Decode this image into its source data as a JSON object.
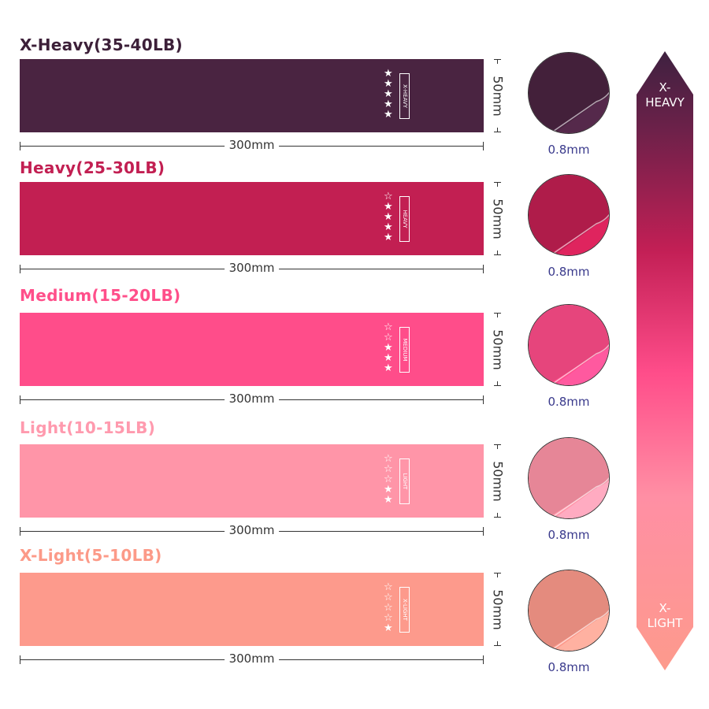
{
  "bands": [
    {
      "title": "X-Heavy(35-40LB)",
      "tag": "X-HEAVY",
      "stars_filled": 5,
      "stars_total": 5,
      "length": "300mm",
      "width": "50mm",
      "thickness": "0.8mm",
      "color": "#4a2441",
      "title_color": "#3d2039"
    },
    {
      "title": "Heavy(25-30LB)",
      "tag": "HEAVY",
      "stars_filled": 4,
      "stars_total": 5,
      "length": "300mm",
      "width": "50mm",
      "thickness": "0.8mm",
      "color": "#c21f52",
      "title_color": "#c21f52"
    },
    {
      "title": "Medium(15-20LB)",
      "tag": "MEDIUM",
      "stars_filled": 3,
      "stars_total": 5,
      "length": "300mm",
      "width": "50mm",
      "thickness": "0.8mm",
      "color": "#ff4d8a",
      "title_color": "#ff4f8a"
    },
    {
      "title": "Light(10-15LB)",
      "tag": "LIGHT",
      "stars_filled": 2,
      "stars_total": 5,
      "length": "300mm",
      "width": "50mm",
      "thickness": "0.8mm",
      "color": "#ff95a8",
      "title_color": "#ff9aae"
    },
    {
      "title": "X-Light(5-10LB)",
      "tag": "X-LIGHT",
      "stars_filled": 1,
      "stars_total": 5,
      "length": "300mm",
      "width": "50mm",
      "thickness": "0.8mm",
      "color": "#fd9a8c",
      "title_color": "#fc9a88"
    }
  ],
  "scale": {
    "top_label": "X-\nHEAVY",
    "bottom_label": "X-\nLIGHT"
  }
}
